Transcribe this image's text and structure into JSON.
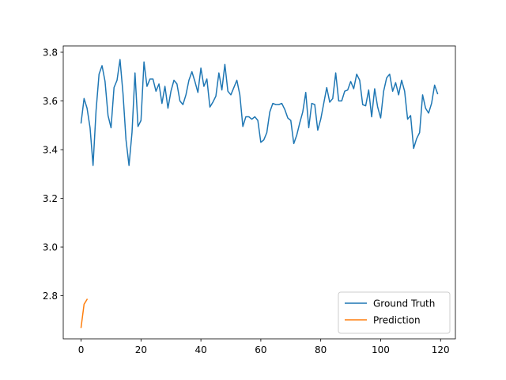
{
  "chart_data": {
    "type": "line",
    "title": "",
    "xlabel": "",
    "ylabel": "",
    "xlim": [
      -5.95,
      124.95
    ],
    "ylim": [
      2.623,
      3.826
    ],
    "x_ticks": [
      0,
      20,
      40,
      60,
      80,
      100,
      120
    ],
    "x_tick_labels": [
      "0",
      "20",
      "40",
      "60",
      "80",
      "100",
      "120"
    ],
    "y_ticks": [
      2.8,
      3.0,
      3.2,
      3.4,
      3.6,
      3.8
    ],
    "y_tick_labels": [
      "2.8",
      "3.0",
      "3.2",
      "3.4",
      "3.6",
      "3.8"
    ],
    "grid": false,
    "legend_position": "lower-right",
    "series": [
      {
        "name": "Ground Truth",
        "color": "#1f77b4",
        "x": [
          0,
          1,
          2,
          3,
          4,
          5,
          6,
          7,
          8,
          9,
          10,
          11,
          12,
          13,
          14,
          15,
          16,
          17,
          18,
          19,
          20,
          21,
          22,
          23,
          24,
          25,
          26,
          27,
          28,
          29,
          30,
          31,
          32,
          33,
          34,
          35,
          36,
          37,
          38,
          39,
          40,
          41,
          42,
          43,
          44,
          45,
          46,
          47,
          48,
          49,
          50,
          51,
          52,
          53,
          54,
          55,
          56,
          57,
          58,
          59,
          60,
          61,
          62,
          63,
          64,
          65,
          66,
          67,
          68,
          69,
          70,
          71,
          72,
          73,
          74,
          75,
          76,
          77,
          78,
          79,
          80,
          81,
          82,
          83,
          84,
          85,
          86,
          87,
          88,
          89,
          90,
          91,
          92,
          93,
          94,
          95,
          96,
          97,
          98,
          99,
          100,
          101,
          102,
          103,
          104,
          105,
          106,
          107,
          108,
          109,
          110,
          111,
          112,
          113,
          114,
          115,
          116,
          117,
          118,
          119
        ],
        "y": [
          3.51,
          3.61,
          3.57,
          3.49,
          3.335,
          3.56,
          3.71,
          3.745,
          3.68,
          3.54,
          3.49,
          3.655,
          3.685,
          3.77,
          3.63,
          3.44,
          3.335,
          3.47,
          3.715,
          3.495,
          3.52,
          3.76,
          3.66,
          3.69,
          3.69,
          3.64,
          3.67,
          3.59,
          3.66,
          3.57,
          3.64,
          3.685,
          3.67,
          3.6,
          3.585,
          3.625,
          3.685,
          3.72,
          3.68,
          3.635,
          3.735,
          3.66,
          3.69,
          3.575,
          3.595,
          3.62,
          3.715,
          3.645,
          3.75,
          3.64,
          3.625,
          3.655,
          3.685,
          3.625,
          3.495,
          3.535,
          3.535,
          3.525,
          3.535,
          3.52,
          3.43,
          3.44,
          3.47,
          3.555,
          3.59,
          3.585,
          3.585,
          3.59,
          3.565,
          3.53,
          3.52,
          3.425,
          3.46,
          3.51,
          3.555,
          3.635,
          3.49,
          3.59,
          3.585,
          3.48,
          3.525,
          3.59,
          3.655,
          3.595,
          3.61,
          3.715,
          3.6,
          3.6,
          3.64,
          3.645,
          3.68,
          3.65,
          3.71,
          3.685,
          3.585,
          3.58,
          3.645,
          3.535,
          3.65,
          3.575,
          3.53,
          3.64,
          3.695,
          3.71,
          3.64,
          3.675,
          3.625,
          3.685,
          3.64,
          3.525,
          3.54,
          3.405,
          3.445,
          3.47,
          3.625,
          3.57,
          3.55,
          3.59,
          3.665,
          3.63
        ]
      },
      {
        "name": "Prediction",
        "color": "#ff7f0e",
        "x": [
          0,
          1,
          2
        ],
        "y": [
          2.67,
          2.765,
          2.785
        ]
      }
    ]
  }
}
